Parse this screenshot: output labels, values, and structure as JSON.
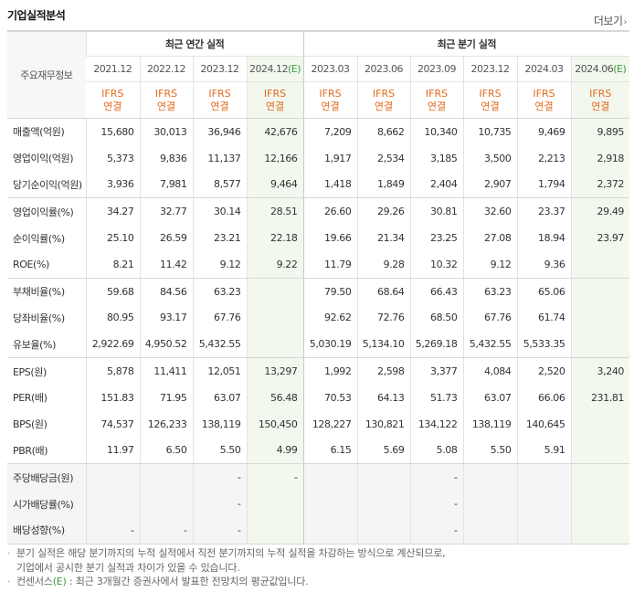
{
  "section": {
    "title": "기업실적분석",
    "more_label": "더보기",
    "more_arrow": "›"
  },
  "header": {
    "corner_label": "주요재무정보",
    "annual_group": "최근 연간 실적",
    "quarter_group": "최근 분기 실적",
    "ifrs_line1": "IFRS",
    "ifrs_line2": "연결",
    "estimate_mark": "(E)",
    "annual_periods": [
      {
        "label": "2021.12",
        "estimate": false
      },
      {
        "label": "2022.12",
        "estimate": false
      },
      {
        "label": "2023.12",
        "estimate": false
      },
      {
        "label": "2024.12",
        "estimate": true
      }
    ],
    "quarter_periods": [
      {
        "label": "2023.03",
        "estimate": false
      },
      {
        "label": "2023.06",
        "estimate": false
      },
      {
        "label": "2023.09",
        "estimate": false
      },
      {
        "label": "2023.12",
        "estimate": false
      },
      {
        "label": "2024.03",
        "estimate": false
      },
      {
        "label": "2024.06",
        "estimate": true
      }
    ]
  },
  "rows": [
    {
      "label": "매출액(억원)",
      "values": [
        "15,680",
        "30,013",
        "36,946",
        "42,676",
        "7,209",
        "8,662",
        "10,340",
        "10,735",
        "9,469",
        "9,895"
      ]
    },
    {
      "label": "영업이익(억원)",
      "values": [
        "5,373",
        "9,836",
        "11,137",
        "12,166",
        "1,917",
        "2,534",
        "3,185",
        "3,500",
        "2,213",
        "2,918"
      ]
    },
    {
      "label": "당기순이익(억원)",
      "values": [
        "3,936",
        "7,981",
        "8,577",
        "9,464",
        "1,418",
        "1,849",
        "2,404",
        "2,907",
        "1,794",
        "2,372"
      ]
    },
    {
      "label": "영업이익률(%)",
      "values": [
        "34.27",
        "32.77",
        "30.14",
        "28.51",
        "26.60",
        "29.26",
        "30.81",
        "32.60",
        "23.37",
        "29.49"
      ]
    },
    {
      "label": "순이익률(%)",
      "values": [
        "25.10",
        "26.59",
        "23.21",
        "22.18",
        "19.66",
        "21.34",
        "23.25",
        "27.08",
        "18.94",
        "23.97"
      ]
    },
    {
      "label": "ROE(%)",
      "values": [
        "8.21",
        "11.42",
        "9.12",
        "9.22",
        "11.79",
        "9.28",
        "10.32",
        "9.12",
        "9.36",
        ""
      ]
    },
    {
      "label": "부채비율(%)",
      "values": [
        "59.68",
        "84.56",
        "63.23",
        "",
        "79.50",
        "68.64",
        "66.43",
        "63.23",
        "65.06",
        ""
      ]
    },
    {
      "label": "당좌비율(%)",
      "values": [
        "80.95",
        "93.17",
        "67.76",
        "",
        "92.62",
        "72.76",
        "68.50",
        "67.76",
        "61.74",
        ""
      ]
    },
    {
      "label": "유보율(%)",
      "values": [
        "2,922.69",
        "4,950.52",
        "5,432.55",
        "",
        "5,030.19",
        "5,134.10",
        "5,269.18",
        "5,432.55",
        "5,533.35",
        ""
      ]
    },
    {
      "label": "EPS(원)",
      "values": [
        "5,878",
        "11,411",
        "12,051",
        "13,297",
        "1,992",
        "2,598",
        "3,377",
        "4,084",
        "2,520",
        "3,240"
      ]
    },
    {
      "label": "PER(배)",
      "values": [
        "151.83",
        "71.95",
        "63.07",
        "56.48",
        "70.53",
        "64.13",
        "51.73",
        "63.07",
        "66.06",
        "231.81"
      ]
    },
    {
      "label": "BPS(원)",
      "values": [
        "74,537",
        "126,233",
        "138,119",
        "150,450",
        "128,227",
        "130,821",
        "134,122",
        "138,119",
        "140,645",
        ""
      ]
    },
    {
      "label": "PBR(배)",
      "values": [
        "11.97",
        "6.50",
        "5.50",
        "4.99",
        "6.15",
        "5.69",
        "5.08",
        "5.50",
        "5.91",
        ""
      ]
    },
    {
      "label": "주당배당금(원)",
      "values": [
        "",
        "",
        "-",
        "-",
        "",
        "",
        "-",
        "",
        "",
        ""
      ]
    },
    {
      "label": "시가배당률(%)",
      "values": [
        "",
        "",
        "-",
        "",
        "",
        "",
        "-",
        "",
        "",
        ""
      ]
    },
    {
      "label": "배당성향(%)",
      "values": [
        "-",
        "-",
        "-",
        "",
        "",
        "",
        "-",
        "",
        "",
        ""
      ]
    }
  ],
  "notes": {
    "bullet": "·",
    "note1_line1": "분기 실적은 해당 분기까지의 누적 실적에서 직전 분기까지의 누적 실적을 차감하는 방식으로 계산되므로,",
    "note1_line2": "기업에서 공시한 분기 실적과 차이가 있을 수 있습니다.",
    "note2_prefix": "컨센서스",
    "note2_mark": "(E)",
    "note2_text": " : 최근 3개월간 증권사에서 발표한 전망치의 평균값입니다."
  }
}
